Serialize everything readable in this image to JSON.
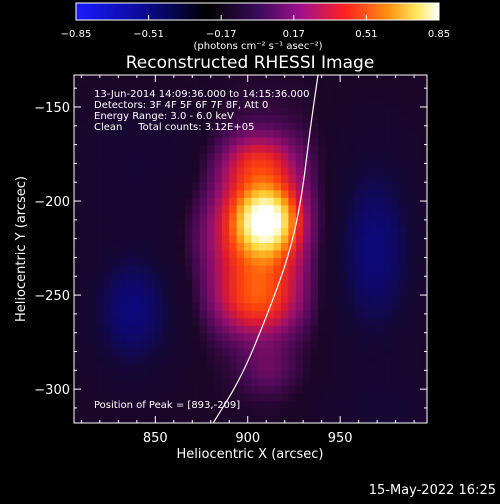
{
  "chart_data": {
    "type": "heatmap",
    "title": "Reconstructed RHESSI Image",
    "xlabel": "Heliocentric X (arcsec)",
    "ylabel": "Heliocentric Y (arcsec)",
    "xlim": [
      806,
      997
    ],
    "ylim": [
      -318,
      -133
    ],
    "x_ticks": [
      850,
      900,
      950
    ],
    "y_ticks": [
      -150,
      -200,
      -250,
      -300
    ],
    "x_tick_labels": [
      "850",
      "900",
      "950"
    ],
    "y_tick_labels": [
      "−150",
      "−200",
      "−250",
      "−300"
    ],
    "colorbar": {
      "range": [
        -0.85,
        0.85
      ],
      "ticks": [
        -0.85,
        -0.51,
        -0.17,
        0.17,
        0.51,
        0.85
      ],
      "tick_labels": [
        "−0.85",
        "−0.51",
        "−0.17",
        "0.17",
        "0.51",
        "0.85"
      ],
      "unit_text": "(photons cm⁻² s⁻¹ asec⁻²)"
    },
    "annotations": [
      "13-Jun-2014 14:09:36.000 to 14:15:36.000",
      "Detectors: 3F 4F 5F 6F 7F 8F, Att 0",
      "Energy Range: 3.0 - 6.0 keV",
      "Clean     Total counts: 3.12E+05"
    ],
    "peak_label": "Position of Peak = [893,-209]",
    "peak": {
      "x": 893,
      "y": -209
    },
    "components": [
      {
        "x": 910,
        "y": -210,
        "sx": 10,
        "sy": 11,
        "amp": 0.55
      },
      {
        "x": 906,
        "y": -215,
        "sx": 21,
        "sy": 30,
        "amp": 0.5
      },
      {
        "x": 905,
        "y": -178,
        "sx": 14,
        "sy": 10,
        "amp": 0.18
      },
      {
        "x": 905,
        "y": -255,
        "sx": 17,
        "sy": 13,
        "amp": 0.25
      },
      {
        "x": 911,
        "y": -290,
        "sx": 11,
        "sy": 10,
        "amp": 0.12
      },
      {
        "x": 838,
        "y": -258,
        "sx": 17,
        "sy": 25,
        "amp": -0.42
      },
      {
        "x": 968,
        "y": -225,
        "sx": 17,
        "sy": 38,
        "amp": -0.42
      },
      {
        "x": 842,
        "y": -180,
        "sx": 28,
        "sy": 22,
        "amp": -0.16
      },
      {
        "x": 975,
        "y": -310,
        "sx": 22,
        "sy": 12,
        "amp": -0.15
      }
    ],
    "limb_curve": [
      [
        880,
        -320
      ],
      [
        896,
        -295
      ],
      [
        910,
        -262
      ],
      [
        922,
        -230
      ],
      [
        929,
        -200
      ],
      [
        934,
        -160
      ],
      [
        938,
        -133
      ]
    ],
    "background_level": -0.05,
    "grid": false,
    "colormap": "blue-black-purple-red-yellow-white"
  },
  "timestamp": "15-May-2022 16:25"
}
